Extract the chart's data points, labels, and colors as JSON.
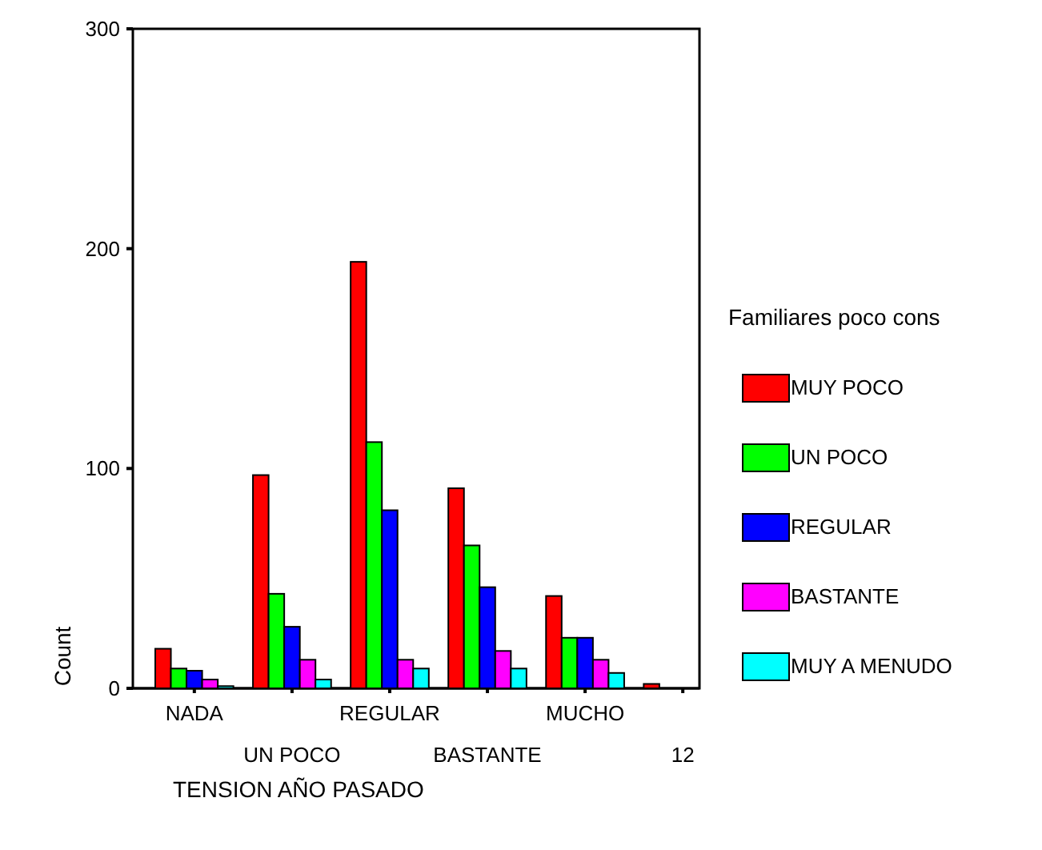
{
  "chart_data": {
    "type": "bar",
    "xlabel": "TENSION AÑO PASADO",
    "ylabel": "Count",
    "legend_title": "Familiares poco cons",
    "categories": [
      "NADA",
      "UN POCO",
      "REGULAR",
      "BASTANTE",
      "MUCHO",
      "12"
    ],
    "series": [
      {
        "name": "MUY POCO",
        "color": "#ff0000",
        "values": [
          18,
          97,
          194,
          91,
          42,
          2
        ]
      },
      {
        "name": "UN POCO",
        "color": "#00ff00",
        "values": [
          9,
          43,
          112,
          65,
          23,
          0
        ]
      },
      {
        "name": "REGULAR",
        "color": "#0000ff",
        "values": [
          8,
          28,
          81,
          46,
          23,
          0
        ]
      },
      {
        "name": "BASTANTE",
        "color": "#ff00ff",
        "values": [
          4,
          13,
          13,
          17,
          13,
          0
        ]
      },
      {
        "name": "MUY A MENUDO",
        "color": "#00ffff",
        "values": [
          1,
          4,
          9,
          9,
          7,
          0
        ]
      }
    ],
    "ylim": [
      0,
      300
    ],
    "yticks": [
      0,
      100,
      200,
      300
    ],
    "legend": "right",
    "grid": false
  }
}
